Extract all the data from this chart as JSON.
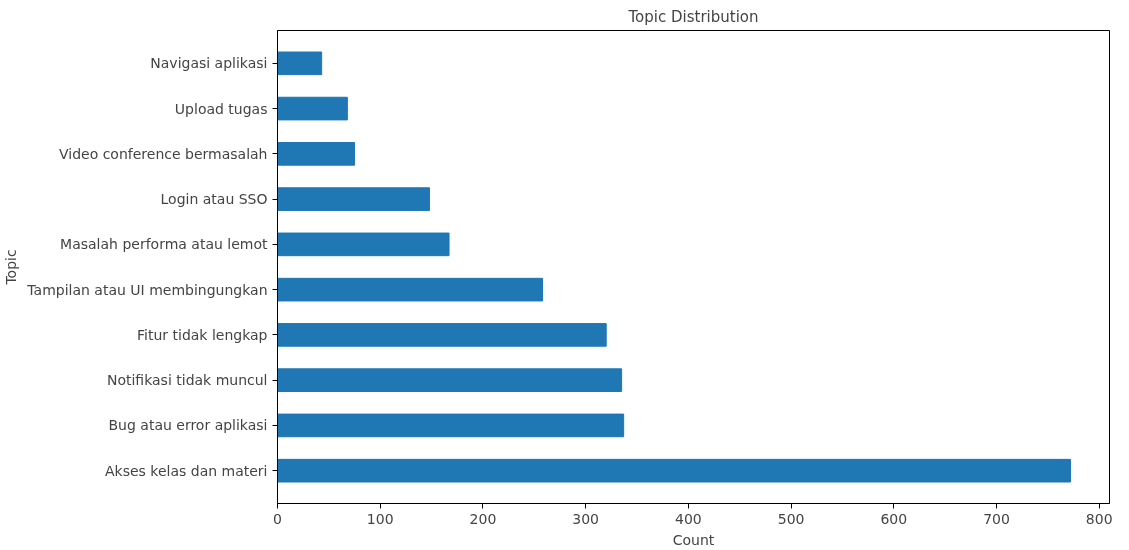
{
  "chart_data": {
    "type": "bar",
    "orientation": "horizontal",
    "title": "Topic Distribution",
    "xlabel": "Count",
    "ylabel": "Topic",
    "categories": [
      "Navigasi aplikasi",
      "Upload tugas",
      "Video conference bermasalah",
      "Login atau SSO",
      "Masalah performa atau lemot",
      "Tampilan atau UI membingungkan",
      "Fitur tidak lengkap",
      "Notifikasi tidak muncul",
      "Bug atau error aplikasi",
      "Akses kelas dan materi"
    ],
    "values": [
      43,
      68,
      75,
      148,
      167,
      258,
      320,
      335,
      337,
      772
    ],
    "color": "#1f77b4",
    "xlim": [
      0,
      810
    ],
    "xticks": [
      0,
      100,
      200,
      300,
      400,
      500,
      600,
      700,
      800
    ]
  }
}
